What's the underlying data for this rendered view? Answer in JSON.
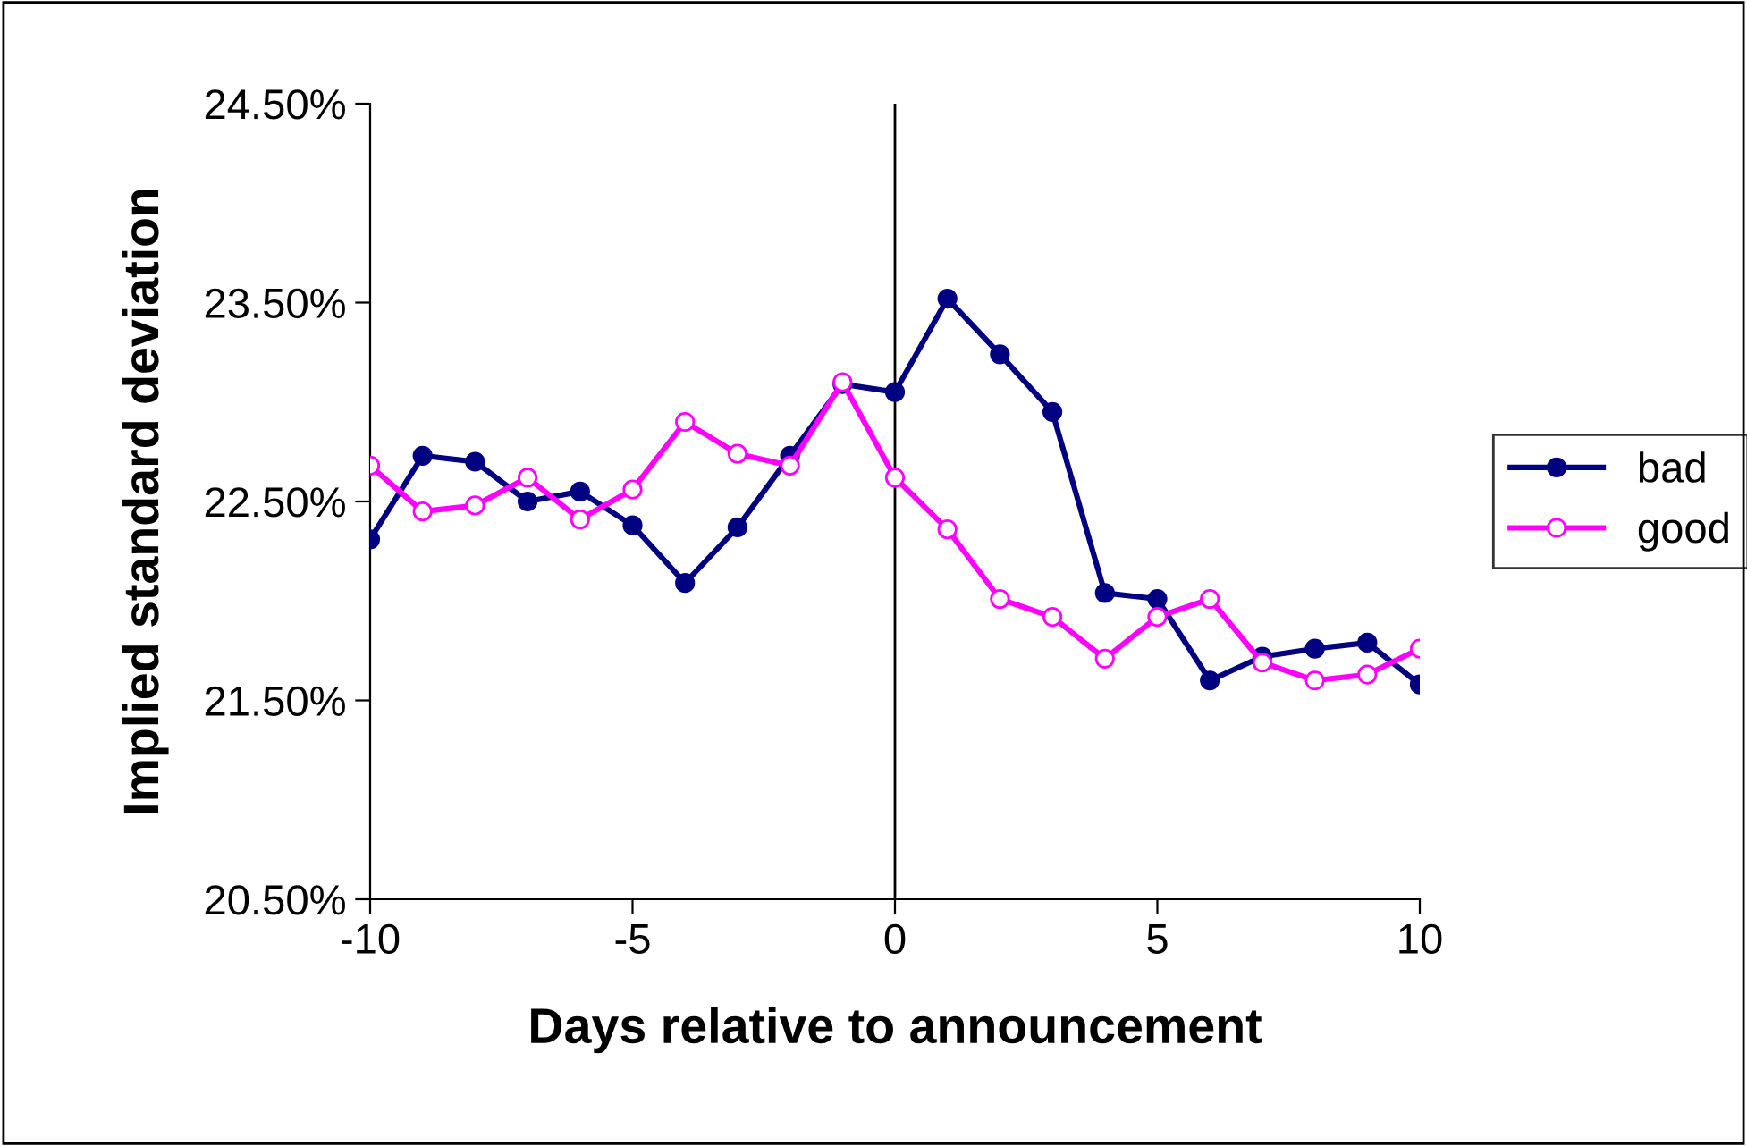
{
  "chart_data": {
    "type": "line",
    "xlabel": "Days relative to announcement",
    "ylabel": "Implied standard deviation",
    "x": [
      -10,
      -9,
      -8,
      -7,
      -6,
      -5,
      -4,
      -3,
      -2,
      -1,
      0,
      1,
      2,
      3,
      4,
      5,
      6,
      7,
      8,
      9,
      10
    ],
    "series": [
      {
        "name": "bad",
        "color": "#000080",
        "marker": "circle",
        "values": [
          22.31,
          22.73,
          22.7,
          22.5,
          22.55,
          22.38,
          22.09,
          22.37,
          22.73,
          23.09,
          23.05,
          23.52,
          23.24,
          22.95,
          22.04,
          22.01,
          21.6,
          21.72,
          21.76,
          21.79,
          21.58
        ]
      },
      {
        "name": "good",
        "color": "#ff00ff",
        "marker": "circle",
        "values": [
          22.68,
          22.45,
          22.48,
          22.62,
          22.41,
          22.56,
          22.9,
          22.74,
          22.68,
          23.1,
          22.62,
          22.36,
          22.01,
          21.92,
          21.71,
          21.92,
          22.01,
          21.69,
          21.6,
          21.63,
          21.76
        ]
      }
    ],
    "xlim": [
      -10,
      10
    ],
    "xticks": [
      -10,
      -5,
      0,
      5,
      10
    ],
    "ylim": [
      20.5,
      24.5
    ],
    "yticks": [
      {
        "value": 20.5,
        "label": "20.50%"
      },
      {
        "value": 21.5,
        "label": "21.50%"
      },
      {
        "value": 22.5,
        "label": "22.50%"
      },
      {
        "value": 23.5,
        "label": "23.50%"
      },
      {
        "value": 24.5,
        "label": "24.50%"
      }
    ],
    "ref_lines": [
      {
        "axis": "x",
        "value": 0,
        "color": "#000000"
      }
    ],
    "grid": false,
    "legend": "right",
    "line_style": "solid"
  }
}
